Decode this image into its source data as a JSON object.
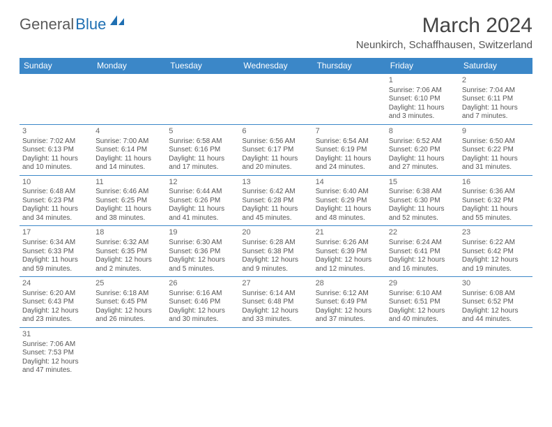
{
  "logo": {
    "part1": "General",
    "part2": "Blue"
  },
  "title": "March 2024",
  "location": "Neunkirch, Schaffhausen, Switzerland",
  "header_bg": "#3b87c8",
  "header_fg": "#ffffff",
  "rule_color": "#3b87c8",
  "weekdays": [
    "Sunday",
    "Monday",
    "Tuesday",
    "Wednesday",
    "Thursday",
    "Friday",
    "Saturday"
  ],
  "cells": [
    {
      "day": "",
      "lines": []
    },
    {
      "day": "",
      "lines": []
    },
    {
      "day": "",
      "lines": []
    },
    {
      "day": "",
      "lines": []
    },
    {
      "day": "",
      "lines": []
    },
    {
      "day": "1",
      "lines": [
        "Sunrise: 7:06 AM",
        "Sunset: 6:10 PM",
        "Daylight: 11 hours",
        "and 3 minutes."
      ]
    },
    {
      "day": "2",
      "lines": [
        "Sunrise: 7:04 AM",
        "Sunset: 6:11 PM",
        "Daylight: 11 hours",
        "and 7 minutes."
      ]
    },
    {
      "day": "3",
      "lines": [
        "Sunrise: 7:02 AM",
        "Sunset: 6:13 PM",
        "Daylight: 11 hours",
        "and 10 minutes."
      ]
    },
    {
      "day": "4",
      "lines": [
        "Sunrise: 7:00 AM",
        "Sunset: 6:14 PM",
        "Daylight: 11 hours",
        "and 14 minutes."
      ]
    },
    {
      "day": "5",
      "lines": [
        "Sunrise: 6:58 AM",
        "Sunset: 6:16 PM",
        "Daylight: 11 hours",
        "and 17 minutes."
      ]
    },
    {
      "day": "6",
      "lines": [
        "Sunrise: 6:56 AM",
        "Sunset: 6:17 PM",
        "Daylight: 11 hours",
        "and 20 minutes."
      ]
    },
    {
      "day": "7",
      "lines": [
        "Sunrise: 6:54 AM",
        "Sunset: 6:19 PM",
        "Daylight: 11 hours",
        "and 24 minutes."
      ]
    },
    {
      "day": "8",
      "lines": [
        "Sunrise: 6:52 AM",
        "Sunset: 6:20 PM",
        "Daylight: 11 hours",
        "and 27 minutes."
      ]
    },
    {
      "day": "9",
      "lines": [
        "Sunrise: 6:50 AM",
        "Sunset: 6:22 PM",
        "Daylight: 11 hours",
        "and 31 minutes."
      ]
    },
    {
      "day": "10",
      "lines": [
        "Sunrise: 6:48 AM",
        "Sunset: 6:23 PM",
        "Daylight: 11 hours",
        "and 34 minutes."
      ]
    },
    {
      "day": "11",
      "lines": [
        "Sunrise: 6:46 AM",
        "Sunset: 6:25 PM",
        "Daylight: 11 hours",
        "and 38 minutes."
      ]
    },
    {
      "day": "12",
      "lines": [
        "Sunrise: 6:44 AM",
        "Sunset: 6:26 PM",
        "Daylight: 11 hours",
        "and 41 minutes."
      ]
    },
    {
      "day": "13",
      "lines": [
        "Sunrise: 6:42 AM",
        "Sunset: 6:28 PM",
        "Daylight: 11 hours",
        "and 45 minutes."
      ]
    },
    {
      "day": "14",
      "lines": [
        "Sunrise: 6:40 AM",
        "Sunset: 6:29 PM",
        "Daylight: 11 hours",
        "and 48 minutes."
      ]
    },
    {
      "day": "15",
      "lines": [
        "Sunrise: 6:38 AM",
        "Sunset: 6:30 PM",
        "Daylight: 11 hours",
        "and 52 minutes."
      ]
    },
    {
      "day": "16",
      "lines": [
        "Sunrise: 6:36 AM",
        "Sunset: 6:32 PM",
        "Daylight: 11 hours",
        "and 55 minutes."
      ]
    },
    {
      "day": "17",
      "lines": [
        "Sunrise: 6:34 AM",
        "Sunset: 6:33 PM",
        "Daylight: 11 hours",
        "and 59 minutes."
      ]
    },
    {
      "day": "18",
      "lines": [
        "Sunrise: 6:32 AM",
        "Sunset: 6:35 PM",
        "Daylight: 12 hours",
        "and 2 minutes."
      ]
    },
    {
      "day": "19",
      "lines": [
        "Sunrise: 6:30 AM",
        "Sunset: 6:36 PM",
        "Daylight: 12 hours",
        "and 5 minutes."
      ]
    },
    {
      "day": "20",
      "lines": [
        "Sunrise: 6:28 AM",
        "Sunset: 6:38 PM",
        "Daylight: 12 hours",
        "and 9 minutes."
      ]
    },
    {
      "day": "21",
      "lines": [
        "Sunrise: 6:26 AM",
        "Sunset: 6:39 PM",
        "Daylight: 12 hours",
        "and 12 minutes."
      ]
    },
    {
      "day": "22",
      "lines": [
        "Sunrise: 6:24 AM",
        "Sunset: 6:41 PM",
        "Daylight: 12 hours",
        "and 16 minutes."
      ]
    },
    {
      "day": "23",
      "lines": [
        "Sunrise: 6:22 AM",
        "Sunset: 6:42 PM",
        "Daylight: 12 hours",
        "and 19 minutes."
      ]
    },
    {
      "day": "24",
      "lines": [
        "Sunrise: 6:20 AM",
        "Sunset: 6:43 PM",
        "Daylight: 12 hours",
        "and 23 minutes."
      ]
    },
    {
      "day": "25",
      "lines": [
        "Sunrise: 6:18 AM",
        "Sunset: 6:45 PM",
        "Daylight: 12 hours",
        "and 26 minutes."
      ]
    },
    {
      "day": "26",
      "lines": [
        "Sunrise: 6:16 AM",
        "Sunset: 6:46 PM",
        "Daylight: 12 hours",
        "and 30 minutes."
      ]
    },
    {
      "day": "27",
      "lines": [
        "Sunrise: 6:14 AM",
        "Sunset: 6:48 PM",
        "Daylight: 12 hours",
        "and 33 minutes."
      ]
    },
    {
      "day": "28",
      "lines": [
        "Sunrise: 6:12 AM",
        "Sunset: 6:49 PM",
        "Daylight: 12 hours",
        "and 37 minutes."
      ]
    },
    {
      "day": "29",
      "lines": [
        "Sunrise: 6:10 AM",
        "Sunset: 6:51 PM",
        "Daylight: 12 hours",
        "and 40 minutes."
      ]
    },
    {
      "day": "30",
      "lines": [
        "Sunrise: 6:08 AM",
        "Sunset: 6:52 PM",
        "Daylight: 12 hours",
        "and 44 minutes."
      ]
    },
    {
      "day": "31",
      "lines": [
        "Sunrise: 7:06 AM",
        "Sunset: 7:53 PM",
        "Daylight: 12 hours",
        "and 47 minutes."
      ]
    },
    {
      "day": "",
      "lines": []
    },
    {
      "day": "",
      "lines": []
    },
    {
      "day": "",
      "lines": []
    },
    {
      "day": "",
      "lines": []
    },
    {
      "day": "",
      "lines": []
    },
    {
      "day": "",
      "lines": []
    }
  ]
}
